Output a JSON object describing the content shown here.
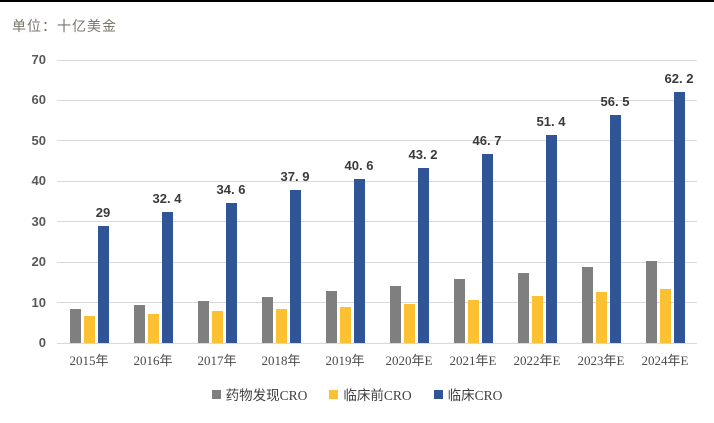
{
  "unit_label": "单位：十亿美金",
  "colors": {
    "drug_discovery": "#7f7f7f",
    "preclinical": "#fbc132",
    "clinical": "#2f5597",
    "gridline": "#d9d9d9",
    "axis_text": "#595959",
    "data_label_text": "#3a3a3a",
    "unit_text": "#7b746b",
    "top_border": "#000000"
  },
  "chart_data": {
    "type": "bar",
    "title": "",
    "unit": "单位：十亿美金",
    "categories": [
      "2015年",
      "2016年",
      "2017年",
      "2018年",
      "2019年",
      "2020年E",
      "2021年E",
      "2022年E",
      "2023年E",
      "2024年E"
    ],
    "series": [
      {
        "name": "药物发现CRO",
        "color_key": "drug_discovery",
        "values": [
          8.5,
          9.5,
          10.3,
          11.4,
          12.9,
          14.1,
          15.8,
          17.2,
          18.8,
          20.3
        ],
        "labels_shown": false
      },
      {
        "name": "临床前CRO",
        "color_key": "preclinical",
        "values": [
          6.8,
          7.1,
          7.8,
          8.4,
          9.0,
          9.7,
          10.7,
          11.6,
          12.5,
          13.4
        ],
        "labels_shown": false
      },
      {
        "name": "临床CRO",
        "color_key": "clinical",
        "values": [
          29,
          32.4,
          34.6,
          37.9,
          40.6,
          43.2,
          46.7,
          51.4,
          56.5,
          62.2
        ],
        "labels_shown": true,
        "data_labels": [
          "29",
          "32. 4",
          "34. 6",
          "37. 9",
          "40. 6",
          "43. 2",
          "46. 7",
          "51. 4",
          "56. 5",
          "62. 2"
        ]
      }
    ],
    "ylim": [
      0,
      70
    ],
    "y_ticks": [
      70,
      60,
      50,
      40,
      30,
      20,
      10,
      0
    ],
    "grid": true,
    "legend_position": "bottom"
  }
}
